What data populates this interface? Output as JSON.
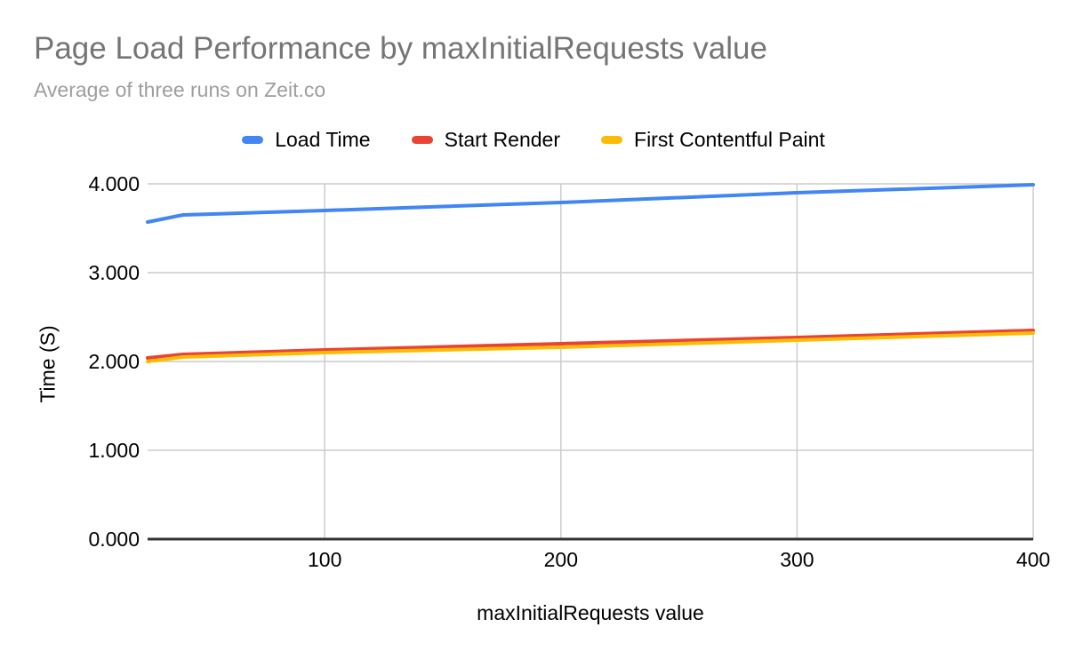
{
  "title": {
    "text": "Page Load Performance by maxInitialRequests value",
    "color": "#757575"
  },
  "subtitle": {
    "text": "Average of three runs on Zeit.co",
    "color": "#9e9e9e"
  },
  "legend": {
    "position": "top",
    "items": [
      "Load Time",
      "Start Render",
      "First Contentful Paint"
    ]
  },
  "y_axis": {
    "title": "Time (S)",
    "tick_labels": [
      "4.000",
      "3.000",
      "2.000",
      "1.000",
      "0.000"
    ],
    "tick_values": [
      4,
      3,
      2,
      1,
      0
    ]
  },
  "x_axis": {
    "title": "maxInitialRequests value",
    "tick_labels": [
      "100",
      "200",
      "300",
      "400"
    ],
    "tick_values": [
      100,
      200,
      300,
      400
    ]
  },
  "colors": {
    "background": "#ffffff",
    "gridline": "#cccccc",
    "baseline": "#333333",
    "axis_text": "#000000",
    "legend_text": "#000000"
  },
  "chart_data": {
    "type": "line",
    "title": "Page Load Performance by maxInitialRequests value",
    "subtitle": "Average of three runs on Zeit.co",
    "xlabel": "maxInitialRequests value",
    "ylabel": "Time (S)",
    "xlim": [
      25,
      400
    ],
    "ylim": [
      0,
      4
    ],
    "grid": true,
    "legend_position": "top",
    "x": [
      25,
      40,
      100,
      200,
      300,
      400
    ],
    "series": [
      {
        "name": "Load Time",
        "color": "#4285F4",
        "values": [
          3.57,
          3.65,
          3.7,
          3.79,
          3.9,
          3.99
        ]
      },
      {
        "name": "Start Render",
        "color": "#EA4335",
        "values": [
          2.04,
          2.08,
          2.13,
          2.2,
          2.27,
          2.35
        ]
      },
      {
        "name": "First Contentful Paint",
        "color": "#FBBC04",
        "values": [
          2.0,
          2.05,
          2.1,
          2.16,
          2.24,
          2.32
        ]
      }
    ]
  }
}
